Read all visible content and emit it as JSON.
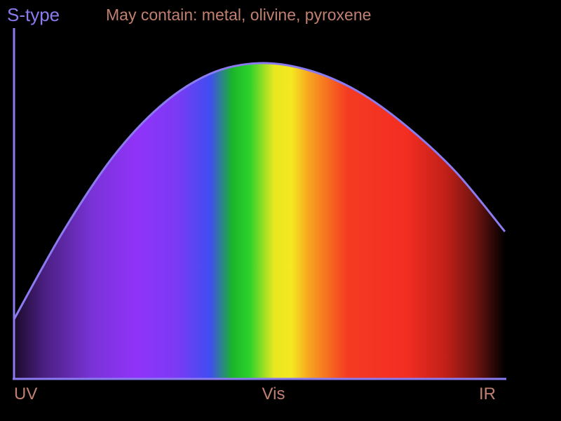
{
  "chart_data": {
    "type": "area",
    "title": "S-type",
    "subtitle": "May contain: metal, olivine, pyroxene",
    "x_ticks": [
      "UV",
      "Vis",
      "IR"
    ],
    "xlabel": "",
    "ylabel": "",
    "grid": false,
    "legend": "none",
    "curve": {
      "x": [
        0.0,
        0.1,
        0.2,
        0.3,
        0.4,
        0.5,
        0.6,
        0.7,
        0.8,
        0.9,
        1.0
      ],
      "y": [
        0.17,
        0.42,
        0.63,
        0.78,
        0.87,
        0.9,
        0.88,
        0.82,
        0.72,
        0.59,
        0.42
      ]
    },
    "xlim": [
      0,
      1
    ],
    "ylim": [
      0,
      1
    ],
    "colors": {
      "title": "#8a7cf0",
      "subtitle": "#c08070",
      "axis": "#8a7cf0",
      "curve": "#8a7cf0",
      "tick_labels": "#c08070"
    },
    "spectrum": [
      {
        "offset": 0.0,
        "color": "#1a0a2a"
      },
      {
        "offset": 0.06,
        "color": "#4a1f80"
      },
      {
        "offset": 0.16,
        "color": "#7a33d8"
      },
      {
        "offset": 0.25,
        "color": "#9033f8"
      },
      {
        "offset": 0.33,
        "color": "#7c3af5"
      },
      {
        "offset": 0.4,
        "color": "#3f4ef0"
      },
      {
        "offset": 0.445,
        "color": "#1bb52a"
      },
      {
        "offset": 0.48,
        "color": "#2dd22a"
      },
      {
        "offset": 0.53,
        "color": "#e8e820"
      },
      {
        "offset": 0.565,
        "color": "#f5e820"
      },
      {
        "offset": 0.6,
        "color": "#f7a620"
      },
      {
        "offset": 0.65,
        "color": "#f56020"
      },
      {
        "offset": 0.68,
        "color": "#f53a22"
      },
      {
        "offset": 0.8,
        "color": "#f32d22"
      },
      {
        "offset": 0.88,
        "color": "#c02018"
      },
      {
        "offset": 0.94,
        "color": "#701410"
      },
      {
        "offset": 1.0,
        "color": "#000000"
      }
    ]
  }
}
